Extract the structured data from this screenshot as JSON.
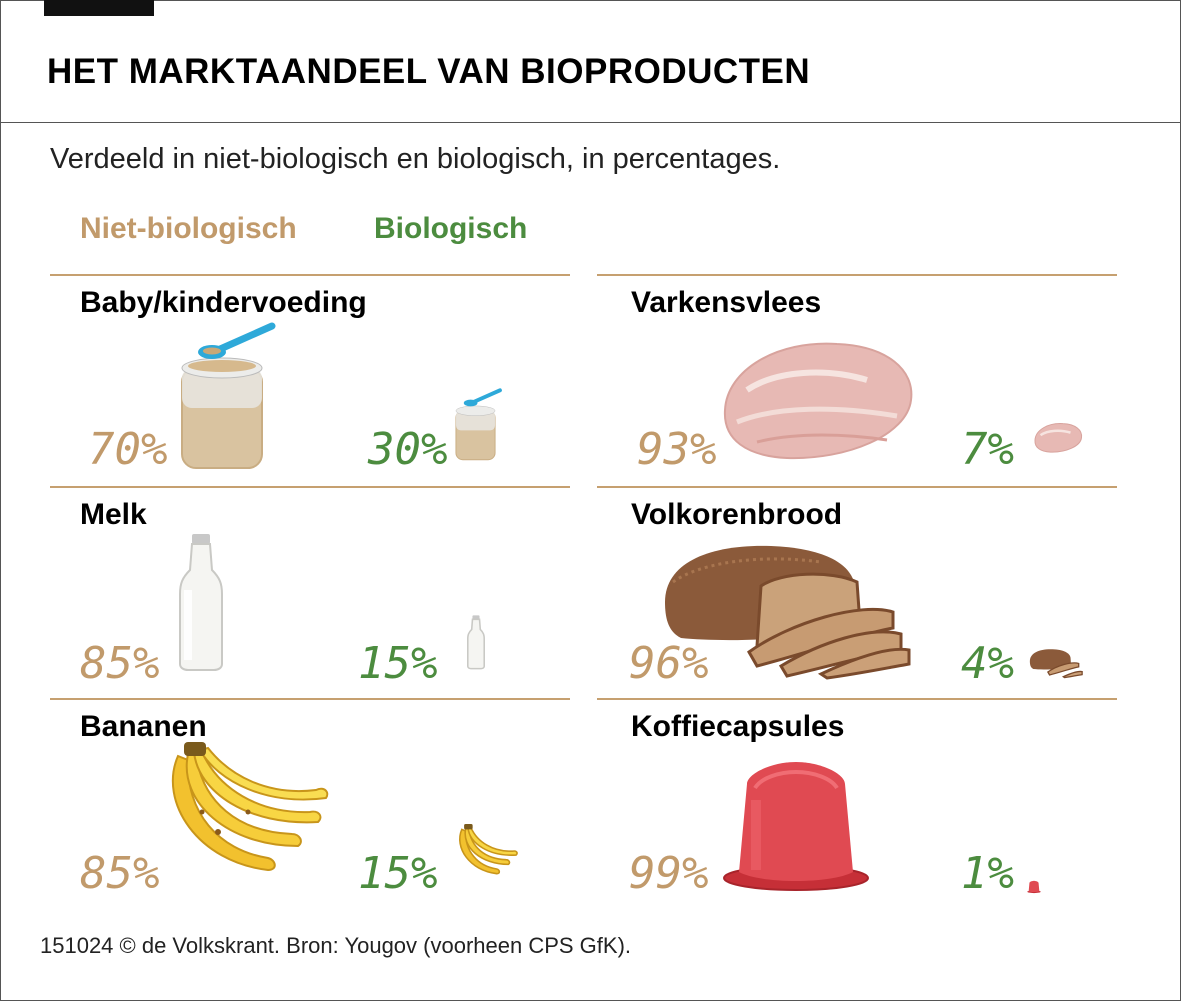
{
  "header": {
    "title": "HET MARKTAANDEEL VAN BIOPRODUCTEN",
    "subtitle": "Verdeeld in niet-biologisch en biologisch, in percentages."
  },
  "legend": {
    "non_organic": "Niet-biologisch",
    "organic": "Biologisch"
  },
  "colors": {
    "non_organic": "#c19a6b",
    "organic": "#4c8c3f",
    "rule": "#c6a070"
  },
  "products": [
    {
      "name": "Baby/kindervoeding",
      "non_organic_label": "70%",
      "organic_label": "30%",
      "icon": "baby-food-jar-icon"
    },
    {
      "name": "Varkensvlees",
      "non_organic_label": "93%",
      "organic_label": "7%",
      "icon": "pork-chop-icon"
    },
    {
      "name": "Melk",
      "non_organic_label": "85%",
      "organic_label": "15%",
      "icon": "milk-bottle-icon"
    },
    {
      "name": "Volkorenbrood",
      "non_organic_label": "96%",
      "organic_label": "4%",
      "icon": "bread-loaf-icon"
    },
    {
      "name": "Bananen",
      "non_organic_label": "85%",
      "organic_label": "15%",
      "icon": "banana-bunch-icon"
    },
    {
      "name": "Koffiecapsules",
      "non_organic_label": "99%",
      "organic_label": "1%",
      "icon": "coffee-capsule-icon"
    }
  ],
  "chart_data": {
    "type": "bar",
    "title": "HET MARKTAANDEEL VAN BIOPRODUCTEN",
    "subtitle": "Verdeeld in niet-biologisch en biologisch, in percentages.",
    "categories": [
      "Baby/kindervoeding",
      "Varkensvlees",
      "Melk",
      "Volkorenbrood",
      "Bananen",
      "Koffiecapsules"
    ],
    "series": [
      {
        "name": "Niet-biologisch",
        "values": [
          70,
          93,
          85,
          96,
          85,
          99
        ]
      },
      {
        "name": "Biologisch",
        "values": [
          30,
          7,
          15,
          4,
          15,
          1
        ]
      }
    ],
    "unit": "%"
  },
  "footer": {
    "source": "151024 © de Volkskrant. Bron: Yougov (voorheen CPS GfK)."
  }
}
